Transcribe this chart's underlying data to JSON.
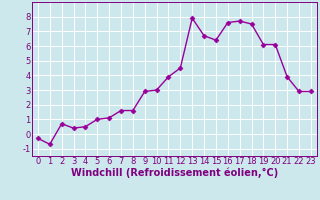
{
  "x": [
    0,
    1,
    2,
    3,
    4,
    5,
    6,
    7,
    8,
    9,
    10,
    11,
    12,
    13,
    14,
    15,
    16,
    17,
    18,
    19,
    20,
    21,
    22,
    23
  ],
  "y": [
    -0.3,
    -0.7,
    0.7,
    0.4,
    0.5,
    1.0,
    1.1,
    1.6,
    1.6,
    2.9,
    3.0,
    3.9,
    4.5,
    7.9,
    6.7,
    6.4,
    7.6,
    7.7,
    7.5,
    6.1,
    6.1,
    3.9,
    2.9,
    2.9
  ],
  "line_color": "#990099",
  "marker": "D",
  "markersize": 2.5,
  "linewidth": 1.0,
  "xlabel": "Windchill (Refroidissement éolien,°C)",
  "xlim": [
    -0.5,
    23.5
  ],
  "ylim": [
    -1.5,
    9.0
  ],
  "xticks": [
    0,
    1,
    2,
    3,
    4,
    5,
    6,
    7,
    8,
    9,
    10,
    11,
    12,
    13,
    14,
    15,
    16,
    17,
    18,
    19,
    20,
    21,
    22,
    23
  ],
  "yticks": [
    -1,
    0,
    1,
    2,
    3,
    4,
    5,
    6,
    7,
    8
  ],
  "background_color": "#cce8ec",
  "grid_color": "#ffffff",
  "tick_fontsize": 6,
  "xlabel_fontsize": 7,
  "label_color": "#800080"
}
